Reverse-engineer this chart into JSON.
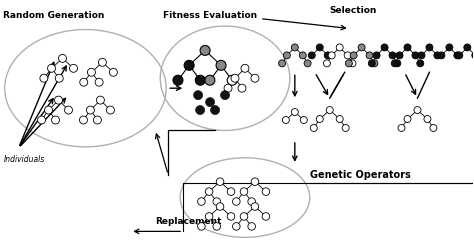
{
  "bg_color": "#ffffff",
  "labels": {
    "random_gen": "Random Generation",
    "fitness_eval": "Fitness Evaluation",
    "selection": "Selection",
    "genetic_ops": "Genetic Operators",
    "replacement": "Replacement",
    "individuals": "Individuals"
  },
  "node_r": 0.008,
  "gray": "#888888",
  "black": "#111111",
  "white": "#ffffff",
  "edge_gray": "#aaaaaa"
}
